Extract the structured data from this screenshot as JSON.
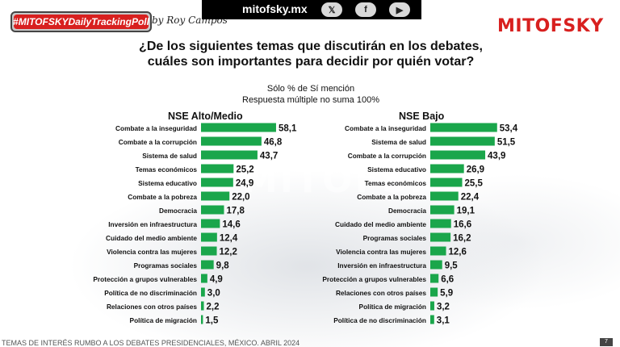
{
  "header": {
    "badge": "#MITOFSKYDailyTrackingPoll",
    "byline": "by Roy Campos",
    "site": "mitofsky.mx",
    "social_icons": [
      "x-icon",
      "facebook-icon",
      "youtube-icon"
    ],
    "logo": "MITOFSKY"
  },
  "question": "¿De los siguientes temas que discutirán en los debates, cuáles son importantes para decidir por quién votar?",
  "subtitle1": "Sólo % de Sí mención",
  "subtitle2": "Respuesta múltiple no suma 100%",
  "footer": "TEMAS DE INTERÉS RUMBO A LOS DEBATES PRESIDENCIALES, MÉXICO. ABRIL 2024",
  "page_number": "7",
  "colors": {
    "bar": "#1aa64b",
    "brand": "#d8201f"
  },
  "chart_data": [
    {
      "type": "bar",
      "orientation": "horizontal",
      "title": "NSE Alto/Medio",
      "categories": [
        "Combate a la inseguridad",
        "Combate a la corrupción",
        "Sistema de salud",
        "Temas económicos",
        "Sistema educativo",
        "Combate a la pobreza",
        "Democracia",
        "Inversión en infraestructura",
        "Cuidado del medio ambiente",
        "Violencia contra las mujeres",
        "Programas sociales",
        "Protección a grupos vulnerables",
        "Política de no discriminación",
        "Relaciones con otros países",
        "Política de migración"
      ],
      "values": [
        58.1,
        46.8,
        43.7,
        25.2,
        24.9,
        22.0,
        17.8,
        14.6,
        12.4,
        12.2,
        9.8,
        4.9,
        3.0,
        2.2,
        1.5
      ],
      "labels": [
        "58,1",
        "46,8",
        "43,7",
        "25,2",
        "24,9",
        "22,0",
        "17,8",
        "14,6",
        "12,4",
        "12,2",
        "9,8",
        "4,9",
        "3,0",
        "2,2",
        "1,5"
      ]
    },
    {
      "type": "bar",
      "orientation": "horizontal",
      "title": "NSE Bajo",
      "categories": [
        "Combate a la inseguridad",
        "Sistema de salud",
        "Combate a la corrupción",
        "Sistema educativo",
        "Temas económicos",
        "Combate a la pobreza",
        "Democracia",
        "Cuidado del medio ambiente",
        "Programas sociales",
        "Violencia contra las mujeres",
        "Inversión en infraestructura",
        "Protección a grupos vulnerables",
        "Relaciones con otros países",
        "Política de migración",
        "Política de no discriminación"
      ],
      "values": [
        53.4,
        51.5,
        43.9,
        26.9,
        25.5,
        22.4,
        19.1,
        16.6,
        16.2,
        12.6,
        9.5,
        6.6,
        5.9,
        3.2,
        3.1
      ],
      "labels": [
        "53,4",
        "51,5",
        "43,9",
        "26,9",
        "25,5",
        "22,4",
        "19,1",
        "16,6",
        "16,2",
        "12,6",
        "9,5",
        "6,6",
        "5,9",
        "3,2",
        "3,1"
      ]
    }
  ]
}
